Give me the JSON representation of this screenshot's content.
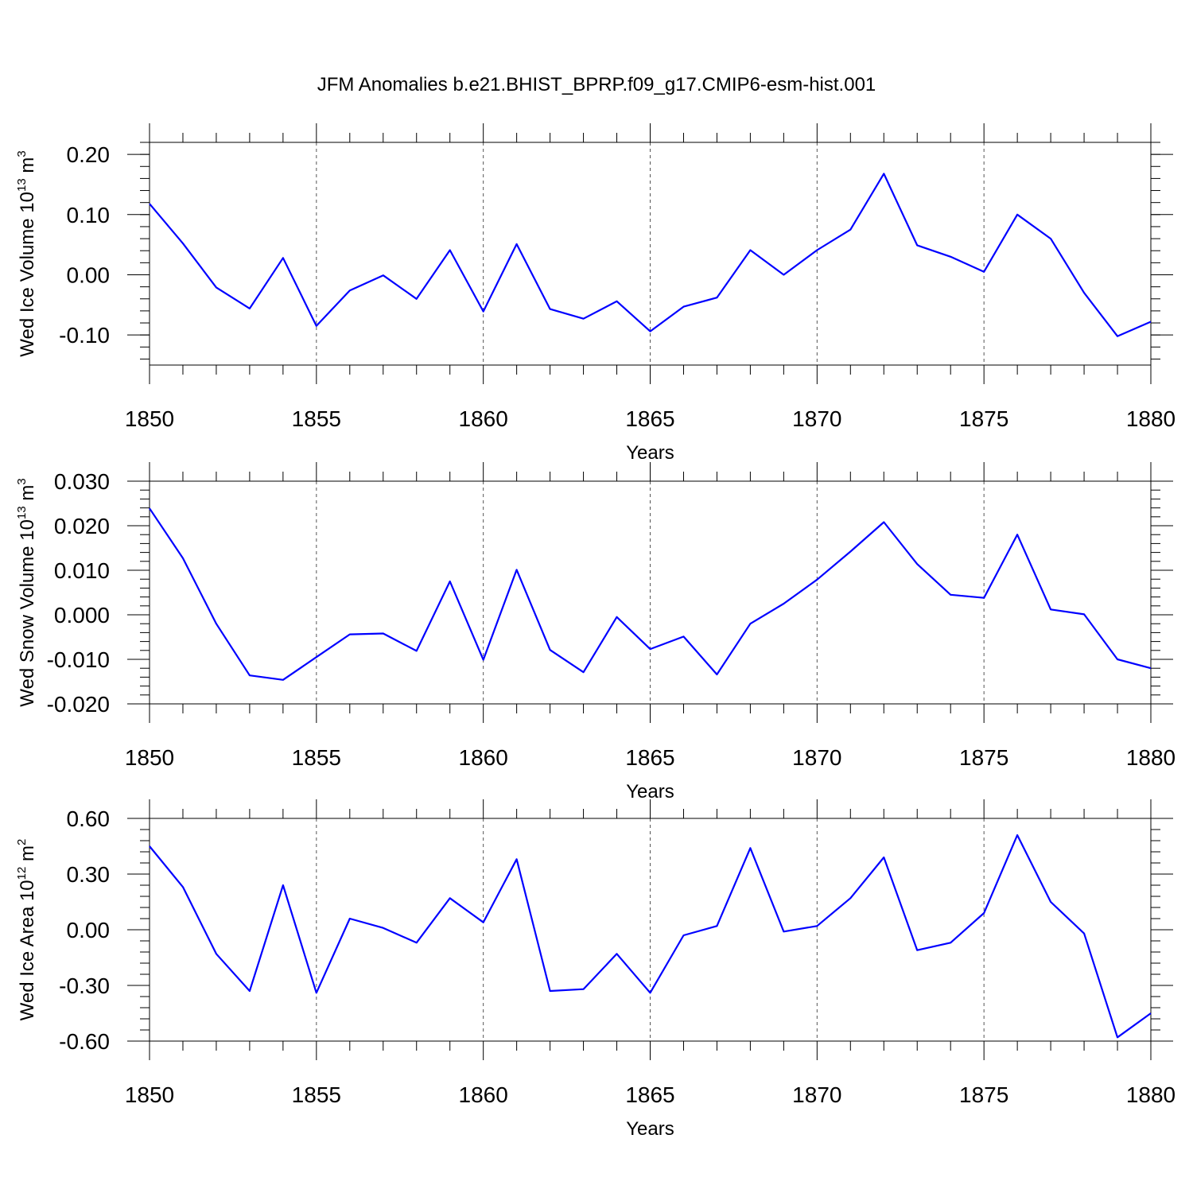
{
  "title": "JFM Anomalies b.e21.BHIST_BPRP.f09_g17.CMIP6-esm-hist.001",
  "colors": {
    "line": "#0000ff",
    "axis": "#000000",
    "grid": "#555555"
  },
  "chart_data": [
    {
      "type": "line",
      "ylabel_main": "Wed Ice Volume 10",
      "ylabel_exp": "13",
      "ylabel_unit": " m",
      "ylabel_unit_exp": "3",
      "xlabel": "Years",
      "xlim": [
        1850,
        1880
      ],
      "ylim": [
        -0.15,
        0.22
      ],
      "xticks": [
        "1850",
        "1855",
        "1860",
        "1865",
        "1870",
        "1875",
        "1880"
      ],
      "yticks": [
        {
          "value": -0.1,
          "label": "-0.10"
        },
        {
          "value": 0.0,
          "label": "0.00"
        },
        {
          "value": 0.1,
          "label": "0.10"
        },
        {
          "value": 0.2,
          "label": "0.20"
        }
      ],
      "yminor_step": 0.02,
      "series": [
        {
          "name": "Wed Ice Volume",
          "x": [
            1850,
            1851,
            1852,
            1853,
            1854,
            1855,
            1856,
            1857,
            1858,
            1859,
            1860,
            1861,
            1862,
            1863,
            1864,
            1865,
            1866,
            1867,
            1868,
            1869,
            1870,
            1871,
            1872,
            1873,
            1874,
            1875,
            1876,
            1877,
            1878,
            1879,
            1880
          ],
          "values": [
            0.118,
            0.052,
            -0.021,
            -0.056,
            0.028,
            -0.085,
            -0.026,
            -0.001,
            -0.04,
            0.041,
            -0.061,
            0.051,
            -0.057,
            -0.073,
            -0.044,
            -0.094,
            -0.053,
            -0.038,
            0.041,
            0.0,
            0.041,
            0.075,
            0.168,
            0.049,
            0.03,
            0.005,
            0.1,
            0.06,
            -0.03,
            -0.102,
            -0.078
          ]
        }
      ]
    },
    {
      "type": "line",
      "ylabel_main": "Wed Snow Volume 10",
      "ylabel_exp": "13",
      "ylabel_unit": " m",
      "ylabel_unit_exp": "3",
      "xlabel": "Years",
      "xlim": [
        1850,
        1880
      ],
      "ylim": [
        -0.02,
        0.03
      ],
      "xticks": [
        "1850",
        "1855",
        "1860",
        "1865",
        "1870",
        "1875",
        "1880"
      ],
      "yticks": [
        {
          "value": -0.02,
          "label": "-0.020"
        },
        {
          "value": -0.01,
          "label": "-0.010"
        },
        {
          "value": 0.0,
          "label": "0.000"
        },
        {
          "value": 0.01,
          "label": "0.010"
        },
        {
          "value": 0.02,
          "label": "0.020"
        },
        {
          "value": 0.03,
          "label": "0.030"
        }
      ],
      "yminor_step": 0.002,
      "series": [
        {
          "name": "Wed Snow Volume",
          "x": [
            1850,
            1851,
            1852,
            1853,
            1854,
            1855,
            1856,
            1857,
            1858,
            1859,
            1860,
            1861,
            1862,
            1863,
            1864,
            1865,
            1866,
            1867,
            1868,
            1869,
            1870,
            1871,
            1872,
            1873,
            1874,
            1875,
            1876,
            1877,
            1878,
            1879,
            1880
          ],
          "values": [
            0.0239,
            0.0127,
            -0.002,
            -0.0136,
            -0.0146,
            -0.0095,
            -0.0044,
            -0.0042,
            -0.0081,
            0.0075,
            -0.0101,
            0.0101,
            -0.0079,
            -0.0129,
            -0.0005,
            -0.0077,
            -0.0049,
            -0.0134,
            -0.002,
            0.0025,
            0.0079,
            0.0142,
            0.0208,
            0.0114,
            0.0045,
            0.0038,
            0.018,
            0.0012,
            0.0001,
            -0.01,
            -0.012
          ]
        }
      ]
    },
    {
      "type": "line",
      "ylabel_main": "Wed Ice Area 10",
      "ylabel_exp": "12",
      "ylabel_unit": " m",
      "ylabel_unit_exp": "2",
      "xlabel": "Years",
      "xlim": [
        1850,
        1880
      ],
      "ylim": [
        -0.6,
        0.6
      ],
      "xticks": [
        "1850",
        "1855",
        "1860",
        "1865",
        "1870",
        "1875",
        "1880"
      ],
      "yticks": [
        {
          "value": -0.6,
          "label": "-0.60"
        },
        {
          "value": -0.3,
          "label": "-0.30"
        },
        {
          "value": 0.0,
          "label": "0.00"
        },
        {
          "value": 0.3,
          "label": "0.30"
        },
        {
          "value": 0.6,
          "label": "0.60"
        }
      ],
      "yminor_step": 0.06,
      "series": [
        {
          "name": "Wed Ice Area",
          "x": [
            1850,
            1851,
            1852,
            1853,
            1854,
            1855,
            1856,
            1857,
            1858,
            1859,
            1860,
            1861,
            1862,
            1863,
            1864,
            1865,
            1866,
            1867,
            1868,
            1869,
            1870,
            1871,
            1872,
            1873,
            1874,
            1875,
            1876,
            1877,
            1878,
            1879,
            1880
          ],
          "values": [
            0.45,
            0.23,
            -0.13,
            -0.33,
            0.24,
            -0.34,
            0.06,
            0.01,
            -0.07,
            0.17,
            0.04,
            0.38,
            -0.33,
            -0.32,
            -0.13,
            -0.34,
            -0.03,
            0.02,
            0.44,
            -0.01,
            0.02,
            0.17,
            0.39,
            -0.11,
            -0.07,
            0.09,
            0.51,
            0.15,
            -0.02,
            -0.58,
            -0.45
          ]
        }
      ]
    }
  ]
}
